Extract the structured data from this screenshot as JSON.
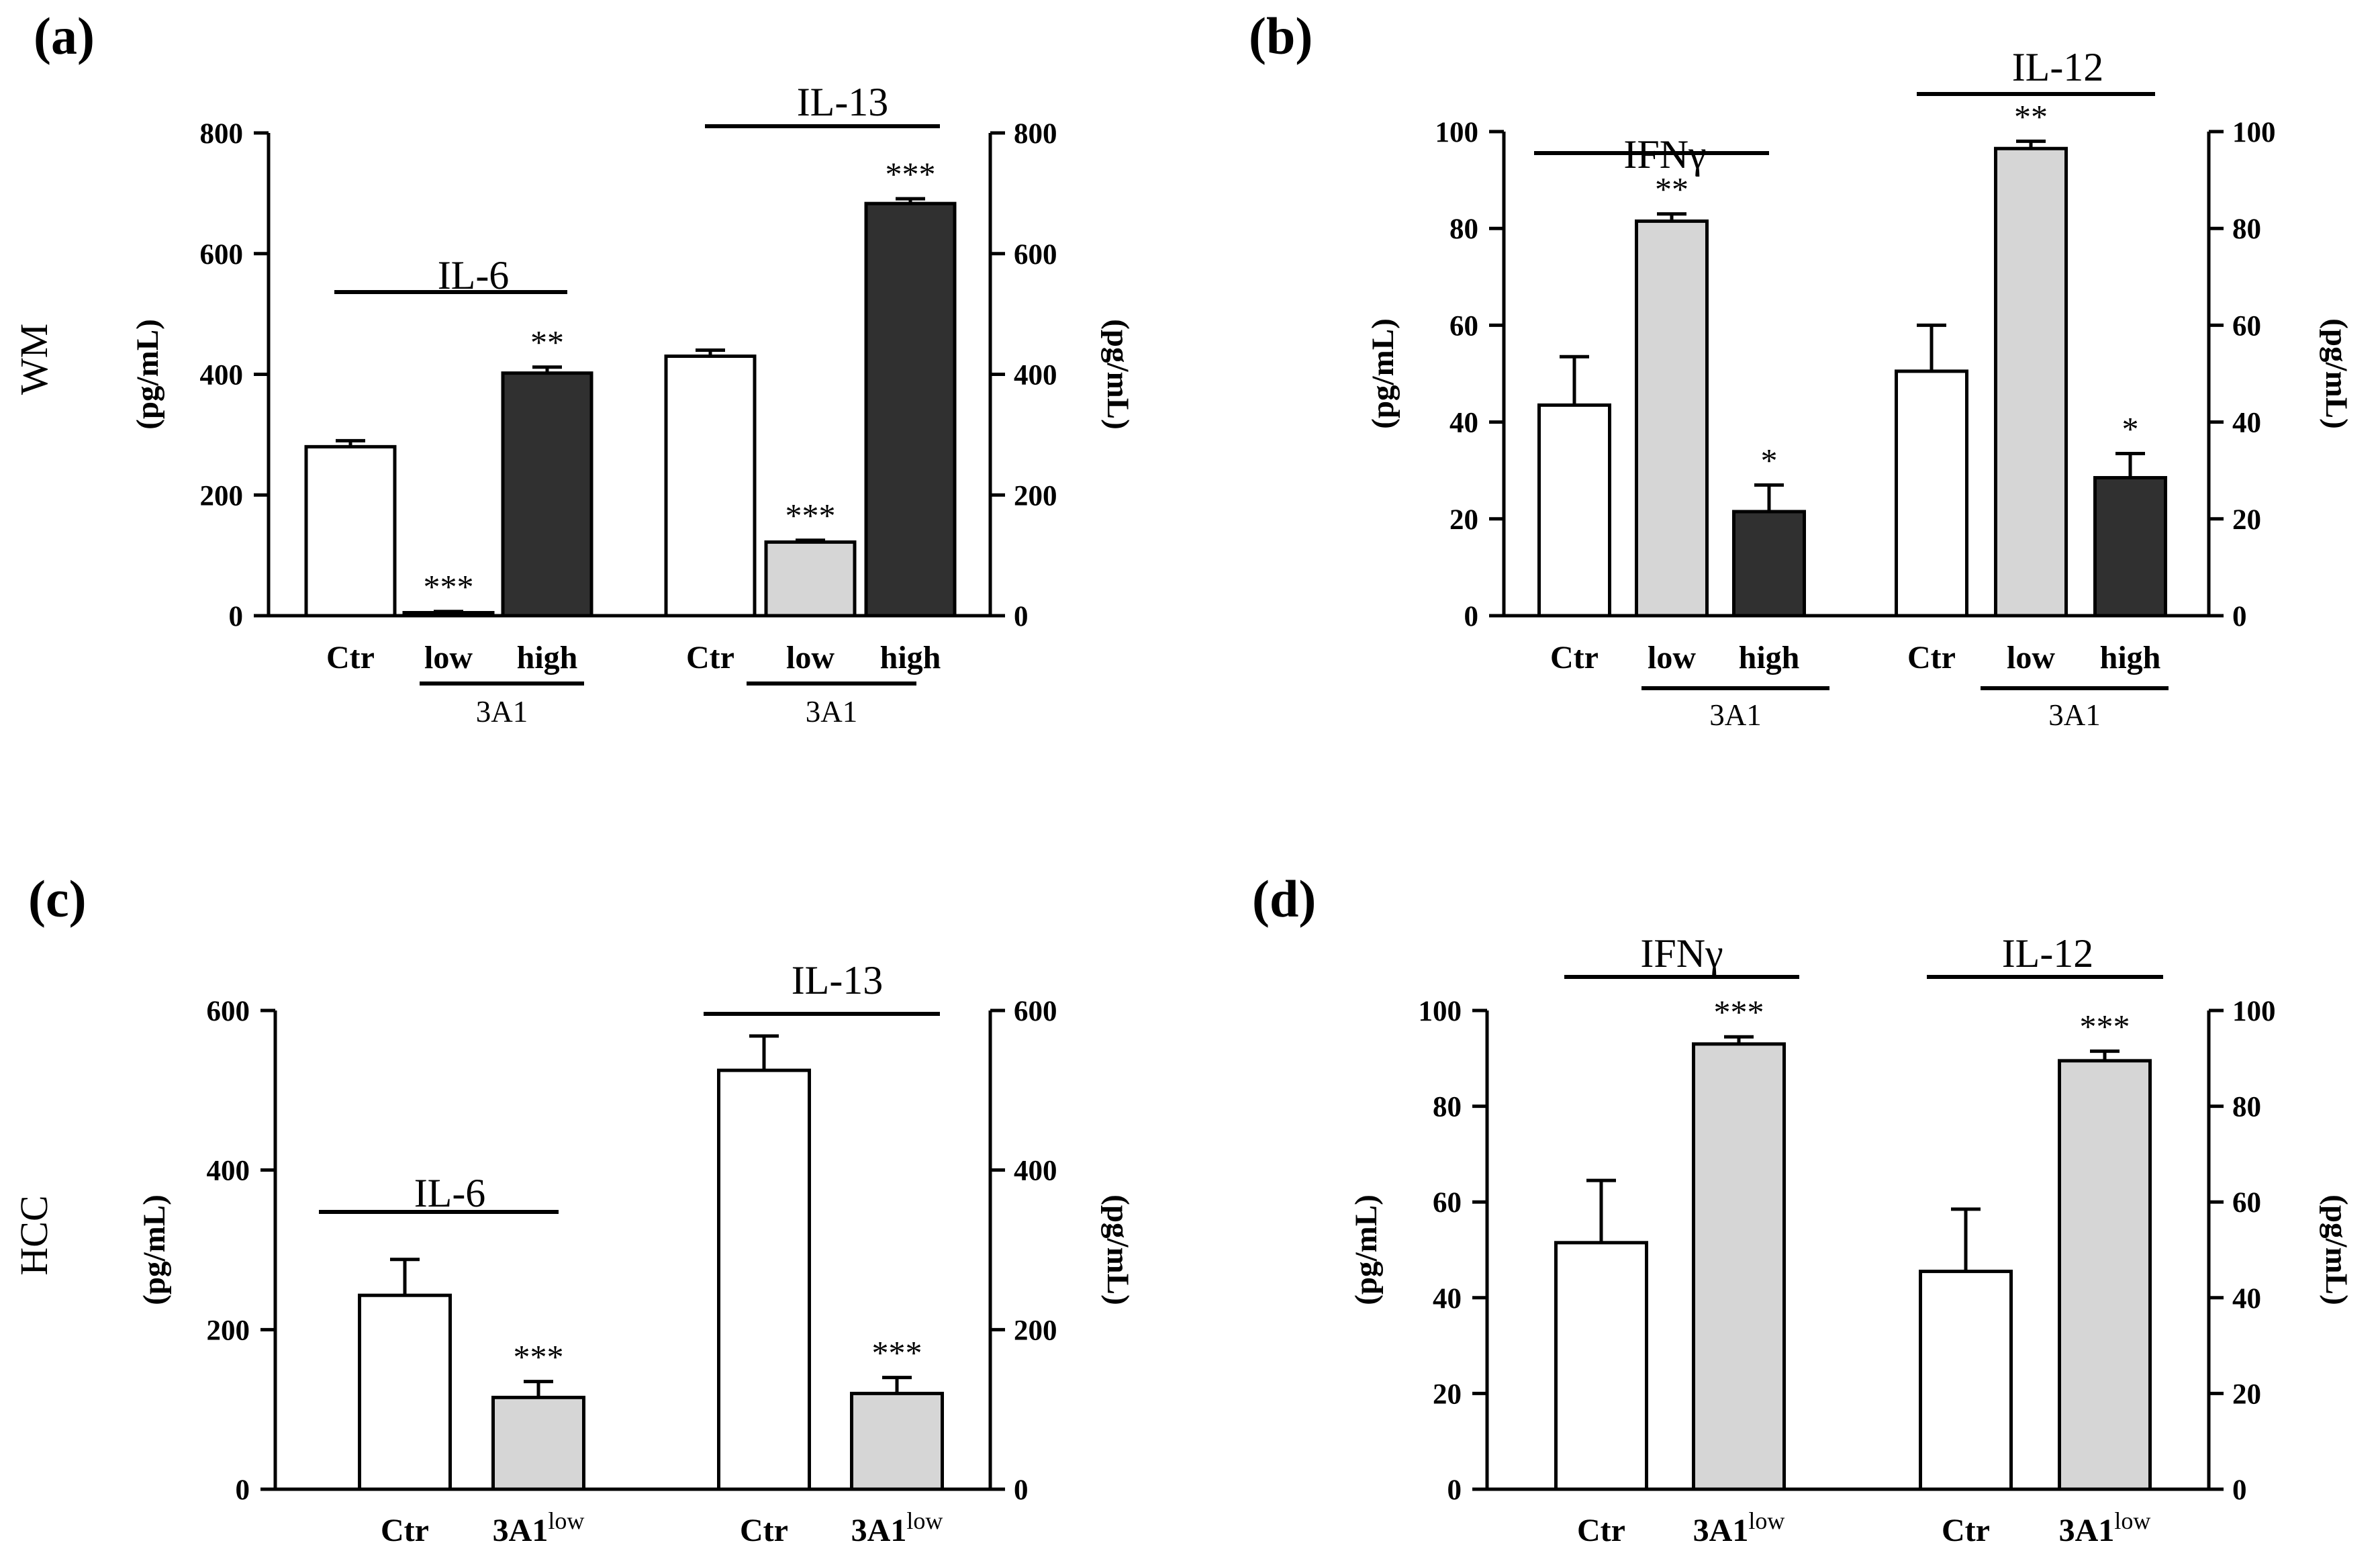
{
  "colors": {
    "ctr": "#ffffff",
    "low": "#d6d6d6",
    "high": "#303030",
    "ink": "#000000"
  },
  "row_labels": {
    "wm": "WM",
    "hcc": "HCC"
  },
  "chart_data": [
    {
      "panel": "(a)",
      "row": "WM",
      "type": "bar",
      "ylabel_left": "(pg/mL)",
      "ylabel_right": "(pg/mL)",
      "ylim": [
        0,
        800
      ],
      "yticks": [
        0,
        200,
        400,
        600,
        800
      ],
      "groups": [
        {
          "cytokine": "IL-6",
          "group_label": "3A1",
          "bars": [
            {
              "category": "Ctr",
              "level": "ctr",
              "value": 280,
              "error": 10,
              "sig": ""
            },
            {
              "category": "low",
              "level": "low",
              "value": 5,
              "error": 2,
              "sig": "***"
            },
            {
              "category": "high",
              "level": "high",
              "value": 402,
              "error": 10,
              "sig": "**"
            }
          ]
        },
        {
          "cytokine": "IL-13",
          "group_label": "3A1",
          "bars": [
            {
              "category": "Ctr",
              "level": "ctr",
              "value": 430,
              "error": 10,
              "sig": ""
            },
            {
              "category": "low",
              "level": "low",
              "value": 122,
              "error": 3,
              "sig": "***"
            },
            {
              "category": "high",
              "level": "high",
              "value": 683,
              "error": 8,
              "sig": "***"
            }
          ]
        }
      ]
    },
    {
      "panel": "(b)",
      "row": "WM",
      "type": "bar",
      "ylabel_left": "(pg/mL)",
      "ylabel_right": "(pg/mL)",
      "ylim": [
        0,
        100
      ],
      "yticks": [
        0,
        20,
        40,
        60,
        80,
        100
      ],
      "groups": [
        {
          "cytokine": "IFNγ",
          "group_label": "3A1",
          "bars": [
            {
              "category": "Ctr",
              "level": "ctr",
              "value": 43.5,
              "error": 10,
              "sig": ""
            },
            {
              "category": "low",
              "level": "low",
              "value": 81.5,
              "error": 1.5,
              "sig": "**"
            },
            {
              "category": "high",
              "level": "high",
              "value": 21.5,
              "error": 5.5,
              "sig": "*"
            }
          ]
        },
        {
          "cytokine": "IL-12",
          "group_label": "3A1",
          "bars": [
            {
              "category": "Ctr",
              "level": "ctr",
              "value": 50.5,
              "error": 9.5,
              "sig": ""
            },
            {
              "category": "low",
              "level": "low",
              "value": 96.5,
              "error": 1.5,
              "sig": "**"
            },
            {
              "category": "high",
              "level": "high",
              "value": 28.5,
              "error": 5,
              "sig": "*"
            }
          ]
        }
      ]
    },
    {
      "panel": "(c)",
      "row": "HCC",
      "type": "bar",
      "ylabel_left": "(pg/mL)",
      "ylabel_right": "(pg/mL)",
      "ylim": [
        0,
        600
      ],
      "yticks": [
        0,
        200,
        400,
        600
      ],
      "groups": [
        {
          "cytokine": "IL-6",
          "group_label": "",
          "bars": [
            {
              "category": "Ctr",
              "level": "ctr",
              "value": 243,
              "error": 45,
              "sig": ""
            },
            {
              "category": "3A1",
              "superscript": "low",
              "level": "low",
              "value": 115,
              "error": 20,
              "sig": "***"
            }
          ]
        },
        {
          "cytokine": "IL-13",
          "group_label": "",
          "bars": [
            {
              "category": "Ctr",
              "level": "ctr",
              "value": 525,
              "error": 43,
              "sig": ""
            },
            {
              "category": "3A1",
              "superscript": "low",
              "level": "low",
              "value": 120,
              "error": 20,
              "sig": "***"
            }
          ]
        }
      ]
    },
    {
      "panel": "(d)",
      "row": "HCC",
      "type": "bar",
      "ylabel_left": "(pg/mL)",
      "ylabel_right": "(pg/mL)",
      "ylim": [
        0,
        100
      ],
      "yticks": [
        0,
        20,
        40,
        60,
        80,
        100
      ],
      "groups": [
        {
          "cytokine": "IFNγ",
          "group_label": "",
          "bars": [
            {
              "category": "Ctr",
              "level": "ctr",
              "value": 51.5,
              "error": 13,
              "sig": ""
            },
            {
              "category": "3A1",
              "superscript": "low",
              "level": "low",
              "value": 93,
              "error": 1.5,
              "sig": "***"
            }
          ]
        },
        {
          "cytokine": "IL-12",
          "group_label": "",
          "bars": [
            {
              "category": "Ctr",
              "level": "ctr",
              "value": 45.5,
              "error": 13,
              "sig": ""
            },
            {
              "category": "3A1",
              "superscript": "low",
              "level": "low",
              "value": 89.5,
              "error": 2,
              "sig": "***"
            }
          ]
        }
      ]
    }
  ]
}
